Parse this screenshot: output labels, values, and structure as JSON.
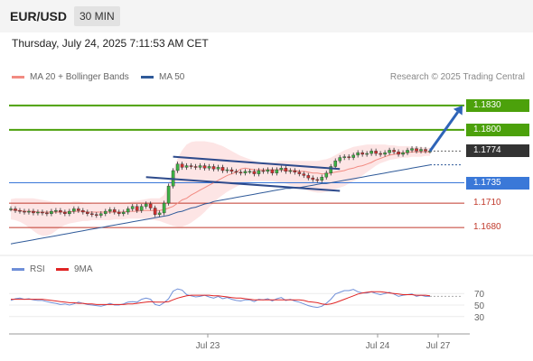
{
  "header": {
    "pair": "EUR/USD",
    "interval": "30 MIN",
    "datetime": "Thursday, July 24, 2025 7:11:53 AM CET",
    "credit": "Research © 2025 Trading Central"
  },
  "legend": {
    "ma20_label": "MA 20 + Bollinger Bands",
    "ma20_color": "#f28b82",
    "ma50_label": "MA 50",
    "ma50_color": "#2f5a99",
    "rsi_label": "RSI",
    "rsi_color": "#6f8fd8",
    "ma9_label": "9MA",
    "ma9_color": "#e02424"
  },
  "chart_data": [
    {
      "type": "line",
      "title": "",
      "ylim": [
        1.1648,
        1.1852
      ],
      "x_tick_labels": [
        "Jul 23",
        "Jul 24",
        "Jul 27"
      ],
      "levels": [
        {
          "label": "1.1830",
          "value": 1.183,
          "kind": "resistance",
          "color": "#4ca10b"
        },
        {
          "label": "1.1800",
          "value": 1.18,
          "kind": "resistance",
          "color": "#4ca10b"
        },
        {
          "label": "1.1774",
          "value": 1.1774,
          "kind": "last-price",
          "color": "#333333"
        },
        {
          "label": "1.1735",
          "value": 1.1735,
          "kind": "pivot",
          "color": "#3a78d8"
        },
        {
          "label": "1.1710",
          "value": 1.171,
          "kind": "support",
          "color": "#c0392b"
        },
        {
          "label": "1.1680",
          "value": 1.168,
          "kind": "support",
          "color": "#c0392b"
        }
      ],
      "series": [
        {
          "values": [
            1.1703,
            1.1701,
            1.17,
            1.1699,
            1.17,
            1.1698,
            1.1699,
            1.1698,
            1.1697,
            1.17,
            1.1701,
            1.1699,
            1.1697,
            1.17,
            1.1703,
            1.1701,
            1.1699,
            1.1697,
            1.1696,
            1.1695,
            1.1697,
            1.17,
            1.1702,
            1.1699,
            1.1697,
            1.1699,
            1.1703,
            1.1706,
            1.1701,
            1.1706,
            1.1709,
            1.1704,
            1.1696,
            1.1698,
            1.171,
            1.1731,
            1.175,
            1.1758,
            1.1754,
            1.1756,
            1.1755,
            1.1754,
            1.1756,
            1.1753,
            1.1755,
            1.1752,
            1.1754,
            1.175,
            1.1751,
            1.1749,
            1.1748,
            1.1747,
            1.1749,
            1.1749,
            1.1746,
            1.175,
            1.1749,
            1.1751,
            1.1747,
            1.1751,
            1.1753,
            1.1749,
            1.175,
            1.1748,
            1.1746,
            1.1744,
            1.1741,
            1.1739,
            1.1738,
            1.1742,
            1.1747,
            1.1755,
            1.1762,
            1.1766,
            1.1767,
            1.1766,
            1.1769,
            1.1772,
            1.177,
            1.1771,
            1.1774,
            1.1771,
            1.177,
            1.1772,
            1.1775,
            1.1773,
            1.177,
            1.1772,
            1.1775,
            1.1777,
            1.1774,
            1.1776,
            1.1774,
            1.1774
          ]
        },
        {
          "name": "MA 20 + Bollinger Bands",
          "values": [
            1.1702,
            1.1701,
            1.1701,
            1.17,
            1.17,
            1.17,
            1.1699,
            1.1699,
            1.1699,
            1.1699,
            1.1699,
            1.1699,
            1.1699,
            1.1699,
            1.17,
            1.17,
            1.17,
            1.1699,
            1.1699,
            1.1699,
            1.1699,
            1.1699,
            1.1699,
            1.1699,
            1.1699,
            1.1699,
            1.17,
            1.17,
            1.17,
            1.1701,
            1.1701,
            1.1701,
            1.1701,
            1.1701,
            1.1702,
            1.1704,
            1.1706,
            1.171,
            1.1714,
            1.1716,
            1.172,
            1.1723,
            1.1726,
            1.1729,
            1.1732,
            1.1735,
            1.1738,
            1.1741,
            1.1744,
            1.1746,
            1.1748,
            1.1752,
            1.1753,
            1.1752,
            1.1751,
            1.1751,
            1.1751,
            1.1751,
            1.1751,
            1.1751,
            1.1751,
            1.175,
            1.175,
            1.175,
            1.1749,
            1.1749,
            1.1748,
            1.1747,
            1.1747,
            1.1746,
            1.1746,
            1.1747,
            1.1748,
            1.1749,
            1.175,
            1.1752,
            1.1753,
            1.1755,
            1.1756,
            1.1758,
            1.176,
            1.1763,
            1.1765,
            1.1767,
            1.1769,
            1.177,
            1.1771,
            1.1772,
            1.1772,
            1.1773,
            1.1773,
            1.1773,
            1.1773,
            1.1773
          ]
        },
        {
          "name": "MA 50",
          "values": [
            1.166,
            1.1661,
            1.1662,
            1.1663,
            1.1664,
            1.1665,
            1.1666,
            1.1667,
            1.1668,
            1.1669,
            1.167,
            1.1671,
            1.1672,
            1.1673,
            1.1674,
            1.1675,
            1.1676,
            1.1677,
            1.1678,
            1.1679,
            1.168,
            1.1681,
            1.1682,
            1.1683,
            1.1684,
            1.1685,
            1.1686,
            1.1687,
            1.1688,
            1.1689,
            1.169,
            1.1691,
            1.1692,
            1.1693,
            1.1694,
            1.1695,
            1.1697,
            1.1699,
            1.17,
            1.1702,
            1.1704,
            1.1705,
            1.1707,
            1.1709,
            1.171,
            1.1712,
            1.1713,
            1.1714,
            1.1715,
            1.1716,
            1.1717,
            1.1718,
            1.1719,
            1.172,
            1.1721,
            1.1722,
            1.1723,
            1.1724,
            1.1725,
            1.1726,
            1.1727,
            1.1728,
            1.1728,
            1.1729,
            1.1729,
            1.173,
            1.1731,
            1.1732,
            1.1733,
            1.1734,
            1.1734,
            1.1735,
            1.1736,
            1.1737,
            1.1738,
            1.1739,
            1.174,
            1.1741,
            1.1742,
            1.1743,
            1.1744,
            1.1745,
            1.1746,
            1.1747,
            1.1748,
            1.1749,
            1.175,
            1.1751,
            1.1752,
            1.1753,
            1.1754,
            1.1755,
            1.1756,
            1.1757
          ]
        }
      ],
      "bollinger_upper": [
        1.1715,
        1.1716,
        1.1716,
        1.1716,
        1.1716,
        1.1716,
        1.1715,
        1.1714,
        1.1713,
        1.1712,
        1.1711,
        1.1711,
        1.1711,
        1.1711,
        1.1712,
        1.1712,
        1.1711,
        1.171,
        1.1709,
        1.1709,
        1.1709,
        1.1709,
        1.1709,
        1.1709,
        1.171,
        1.171,
        1.1711,
        1.1712,
        1.1713,
        1.1714,
        1.1715,
        1.1716,
        1.1716,
        1.1716,
        1.172,
        1.1735,
        1.175,
        1.1765,
        1.1775,
        1.1782,
        1.1785,
        1.1786,
        1.1786,
        1.1786,
        1.1785,
        1.1784,
        1.1782,
        1.178,
        1.1777,
        1.1774,
        1.1771,
        1.1768,
        1.1766,
        1.1764,
        1.1762,
        1.176,
        1.176,
        1.176,
        1.176,
        1.1761,
        1.1762,
        1.1762,
        1.1762,
        1.1762,
        1.1762,
        1.1762,
        1.1762,
        1.1762,
        1.1762,
        1.1763,
        1.1764,
        1.1766,
        1.1769,
        1.1772,
        1.1775,
        1.1777,
        1.1779,
        1.178,
        1.1781,
        1.1782,
        1.1782,
        1.1782,
        1.1782,
        1.1782,
        1.1781,
        1.1781,
        1.178,
        1.178,
        1.178,
        1.1779,
        1.1779,
        1.1779,
        1.1778,
        1.1778
      ],
      "bollinger_lower": [
        1.169,
        1.1689,
        1.1687,
        1.1684,
        1.168,
        1.1676,
        1.1672,
        1.167,
        1.167,
        1.1672,
        1.1676,
        1.168,
        1.1683,
        1.1685,
        1.1686,
        1.1687,
        1.1688,
        1.1688,
        1.1689,
        1.1689,
        1.1689,
        1.1689,
        1.1689,
        1.169,
        1.169,
        1.169,
        1.1691,
        1.1691,
        1.1691,
        1.1691,
        1.169,
        1.169,
        1.1689,
        1.1688,
        1.1686,
        1.1684,
        1.1682,
        1.1681,
        1.1681,
        1.1683,
        1.1686,
        1.169,
        1.1694,
        1.1699,
        1.1705,
        1.171,
        1.1716,
        1.172,
        1.1724,
        1.1727,
        1.173,
        1.1733,
        1.1735,
        1.1736,
        1.1737,
        1.1737,
        1.1737,
        1.1737,
        1.1737,
        1.1736,
        1.1735,
        1.1734,
        1.1732,
        1.1731,
        1.1729,
        1.1727,
        1.1725,
        1.1724,
        1.1723,
        1.1723,
        1.1724,
        1.1725,
        1.1727,
        1.1729,
        1.1731,
        1.1734,
        1.1737,
        1.174,
        1.1744,
        1.1748,
        1.1752,
        1.1756,
        1.1759,
        1.1761,
        1.1763,
        1.1764,
        1.1765,
        1.1766,
        1.1766,
        1.1767,
        1.1767,
        1.1767,
        1.1768,
        1.1768
      ],
      "channel_lines": [
        {
          "from": [
            36,
            1.1767
          ],
          "to": [
            73,
            1.1752
          ]
        },
        {
          "from": [
            30,
            1.1742
          ],
          "to": [
            73,
            1.1725
          ]
        }
      ],
      "projection_arrow": {
        "from": [
          93,
          1.1774
        ],
        "to": [
          105,
          1.183
        ]
      }
    },
    {
      "type": "line",
      "title": "",
      "ylim": [
        0,
        100
      ],
      "y_ticks": [
        30,
        50,
        70
      ],
      "series": [
        {
          "name": "RSI",
          "values": [
            58,
            61,
            62,
            60,
            61,
            59,
            58,
            58,
            56,
            54,
            53,
            51,
            52,
            50,
            52,
            55,
            53,
            51,
            50,
            49,
            48,
            50,
            53,
            50,
            50,
            52,
            55,
            56,
            55,
            60,
            62,
            60,
            51,
            49,
            54,
            61,
            74,
            78,
            76,
            68,
            66,
            64,
            65,
            67,
            64,
            62,
            65,
            61,
            63,
            60,
            58,
            57,
            59,
            59,
            56,
            60,
            59,
            61,
            57,
            61,
            63,
            58,
            60,
            57,
            55,
            52,
            49,
            47,
            46,
            48,
            53,
            60,
            69,
            72,
            75,
            75,
            77,
            73,
            71,
            71,
            73,
            70,
            68,
            70,
            72,
            69,
            65,
            67,
            68,
            69,
            65,
            67,
            65,
            65
          ]
        },
        {
          "name": "9MA",
          "values": [
            60,
            60,
            60,
            60,
            60,
            60,
            60,
            60,
            59,
            58,
            57,
            56,
            55,
            54,
            54,
            53,
            53,
            52,
            52,
            51,
            51,
            51,
            51,
            51,
            51,
            51,
            52,
            52,
            53,
            54,
            55,
            56,
            55,
            55,
            55,
            56,
            59,
            62,
            64,
            66,
            67,
            67,
            67,
            67,
            67,
            66,
            66,
            65,
            64,
            63,
            62,
            62,
            61,
            60,
            59,
            59,
            59,
            59,
            59,
            59,
            59,
            59,
            59,
            59,
            59,
            58,
            56,
            55,
            54,
            52,
            51,
            52,
            54,
            57,
            60,
            63,
            66,
            69,
            71,
            72,
            73,
            73,
            73,
            72,
            71,
            70,
            69,
            68,
            68,
            68,
            67,
            67,
            67,
            66
          ]
        }
      ]
    }
  ]
}
